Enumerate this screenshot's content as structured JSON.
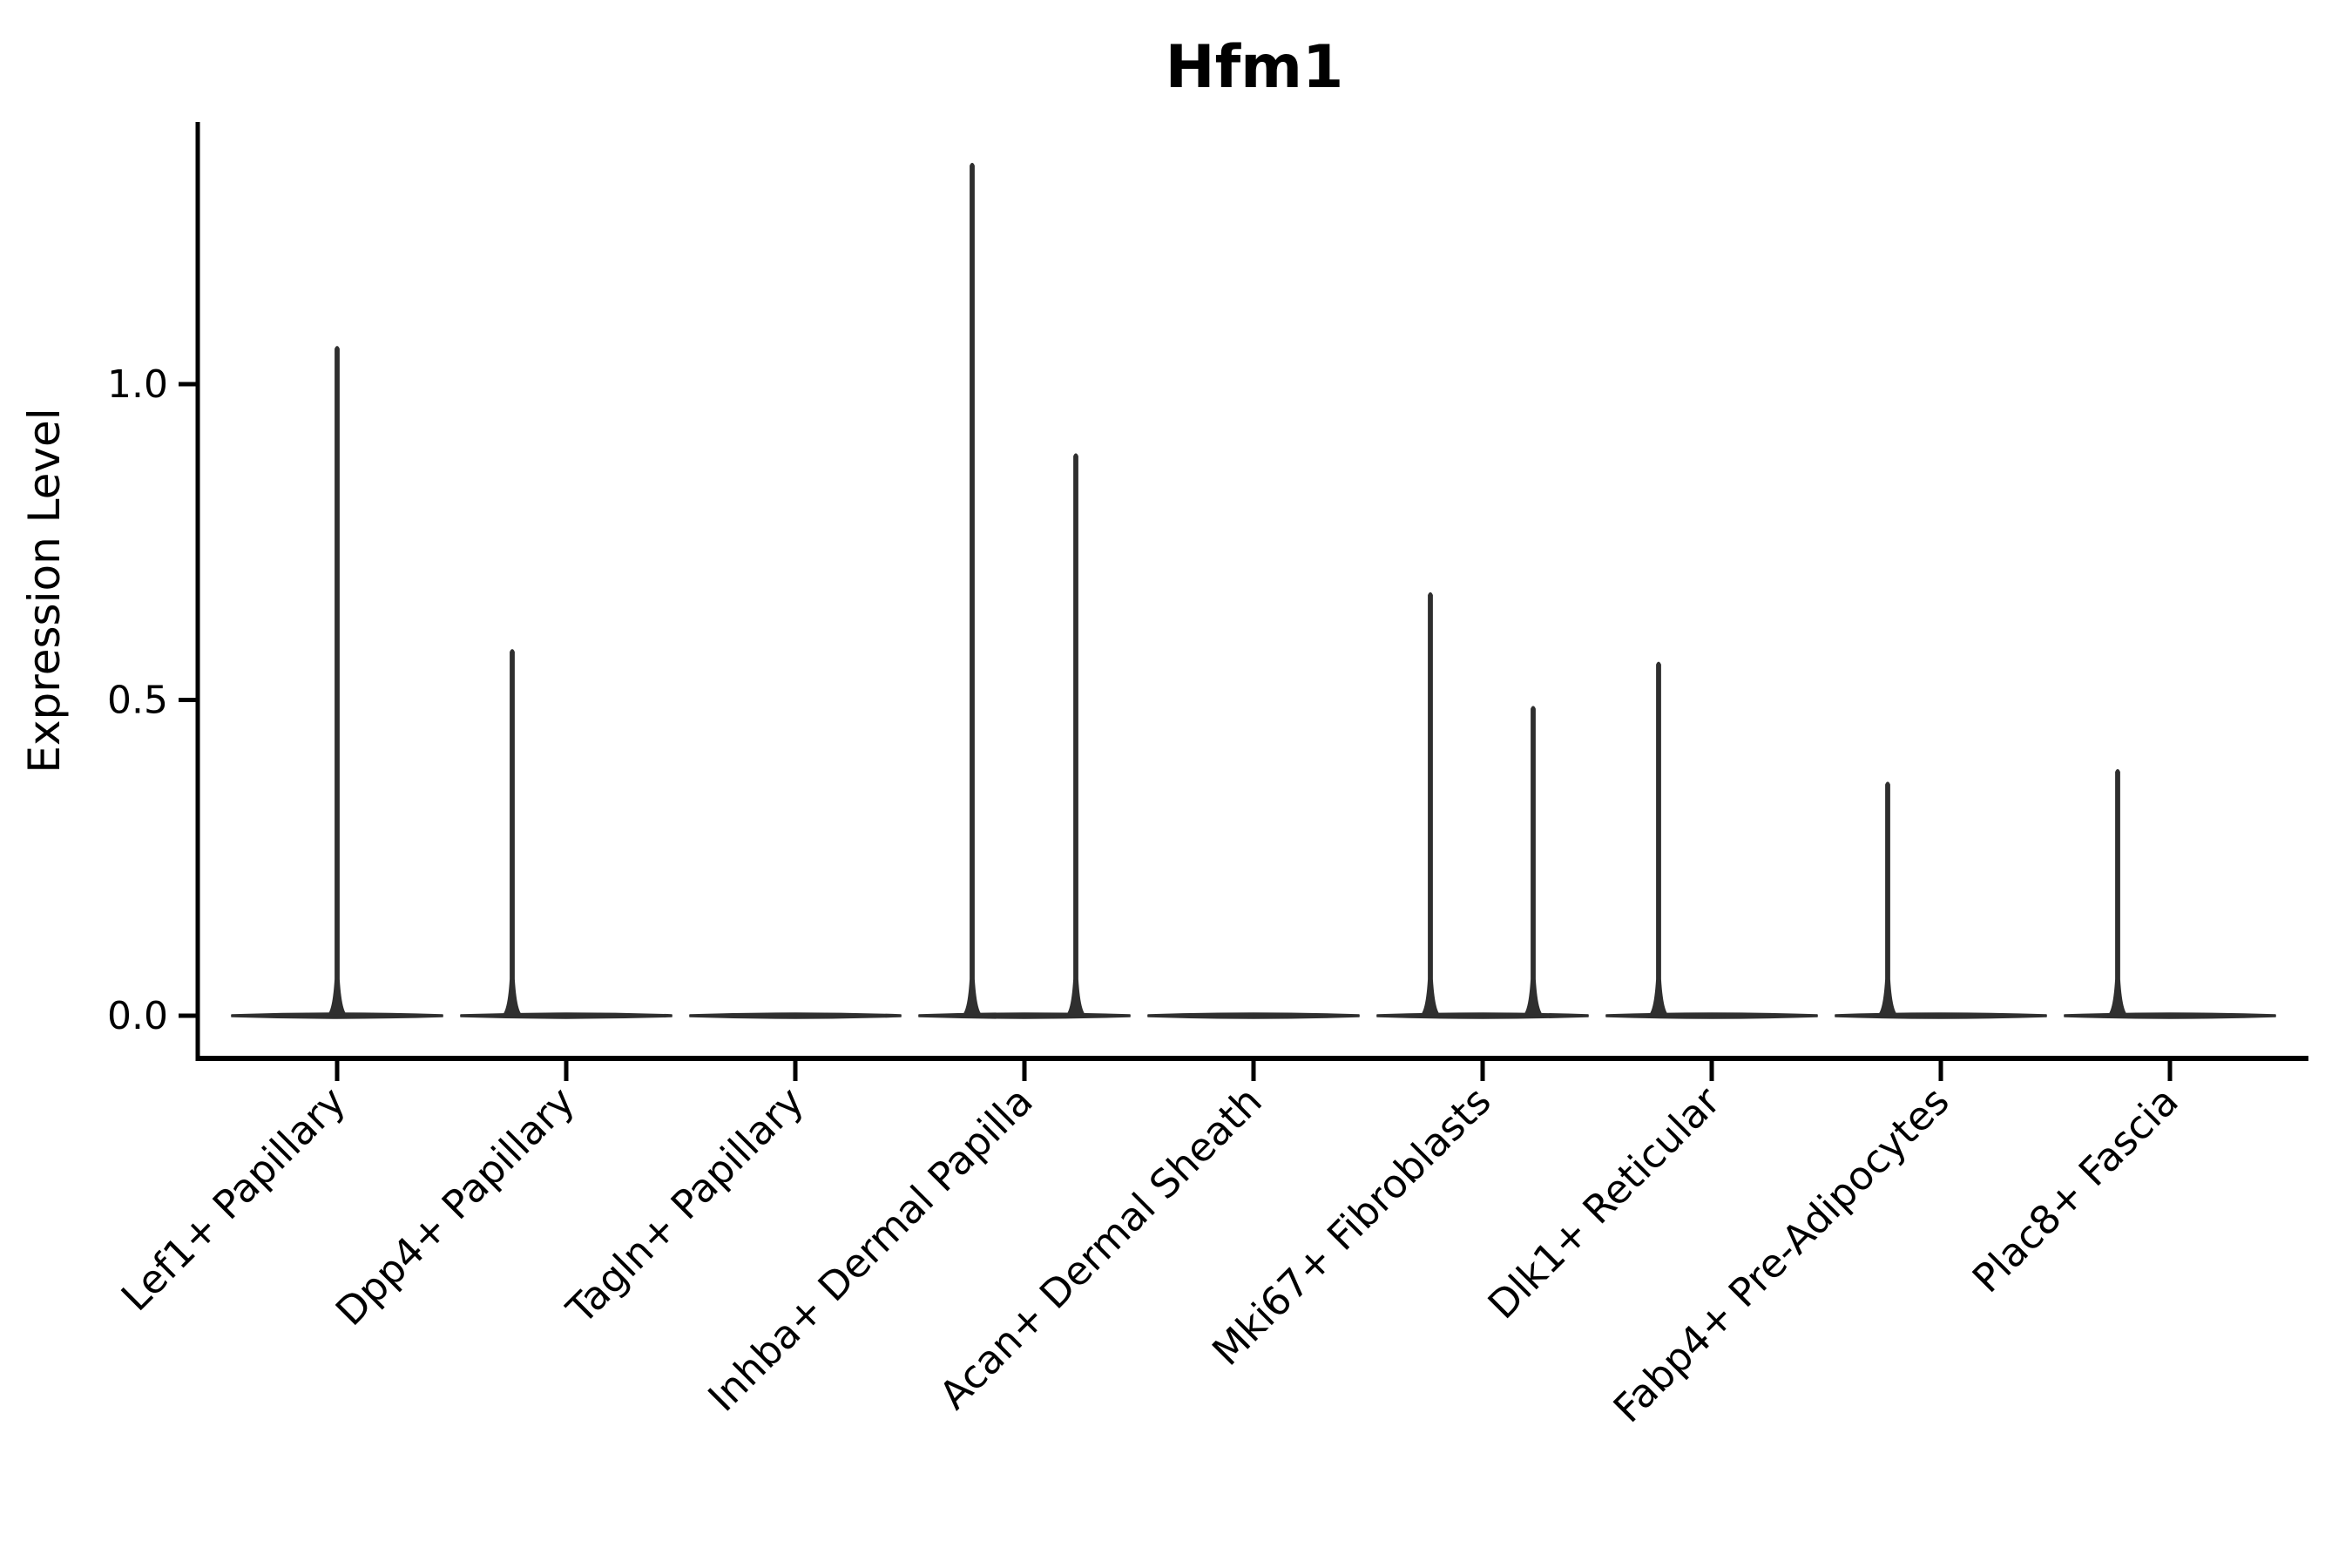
{
  "page": {
    "background_color": "#ffffff"
  },
  "chart_data": {
    "type": "violin",
    "title": "Hfm1",
    "ylabel": "Expression Level",
    "xlabel": "",
    "grid": false,
    "legend": "none",
    "line_color": "#2f2f2f",
    "axis_color": "#000000",
    "text_color": "#000000",
    "ylim": [
      -0.07,
      1.42
    ],
    "yticks": [
      {
        "label": "0.0",
        "value": 0.0
      },
      {
        "label": "0.5",
        "value": 0.5
      },
      {
        "label": "1.0",
        "value": 1.0
      }
    ],
    "x_tick_rotation_deg": 45,
    "categories": [
      "Lef1+ Papillary",
      "Dpp4+ Papillary",
      "Tagln+ Papillary",
      "Inhba+ Dermal Papilla",
      "Acan+ Dermal Sheath",
      "Mki67+ Fibroblasts",
      "Dlk1+ Reticular",
      "Fabp4+ Pre-Adipocytes",
      "Plac8+ Fascia"
    ],
    "series": [
      {
        "category": "Lef1+ Papillary",
        "baseline_value": 0,
        "spikes": [
          {
            "x_offset": 0,
            "max_value": 1.06
          }
        ]
      },
      {
        "category": "Dpp4+ Papillary",
        "baseline_value": 0,
        "spikes": [
          {
            "x_offset": -62,
            "max_value": 0.58
          }
        ]
      },
      {
        "category": "Tagln+ Papillary",
        "baseline_value": 0,
        "spikes": []
      },
      {
        "category": "Inhba+ Dermal Papilla",
        "baseline_value": 0,
        "spikes": [
          {
            "x_offset": -60,
            "max_value": 1.35
          },
          {
            "x_offset": 59,
            "max_value": 0.89
          }
        ]
      },
      {
        "category": "Acan+ Dermal Sheath",
        "baseline_value": 0,
        "spikes": []
      },
      {
        "category": "Mki67+ Fibroblasts",
        "baseline_value": 0,
        "spikes": [
          {
            "x_offset": -60,
            "max_value": 0.67
          },
          {
            "x_offset": 58,
            "max_value": 0.49
          }
        ]
      },
      {
        "category": "Dlk1+ Reticular",
        "baseline_value": 0,
        "spikes": [
          {
            "x_offset": -61,
            "max_value": 0.56
          }
        ]
      },
      {
        "category": "Fabp4+ Pre-Adipocytes",
        "baseline_value": 0,
        "spikes": [
          {
            "x_offset": -61,
            "max_value": 0.37
          }
        ]
      },
      {
        "category": "Plac8+ Fascia",
        "baseline_value": 0,
        "spikes": [
          {
            "x_offset": -60,
            "max_value": 0.39
          }
        ]
      }
    ]
  }
}
